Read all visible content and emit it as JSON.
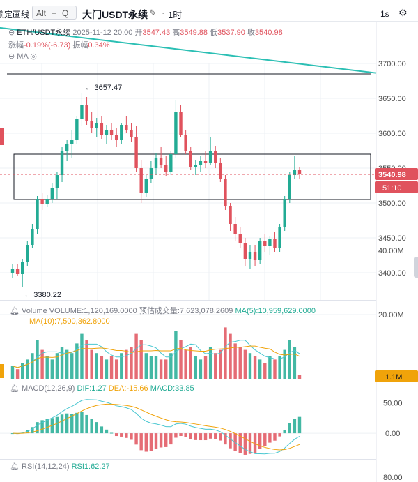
{
  "toolbar": {
    "drawing_label": "锁定画线",
    "shortcut_alt": "Alt",
    "shortcut_plus": "+",
    "shortcut_q": "Q",
    "symbol_title": "大门USDT永续",
    "timeframe": "1时",
    "interval_right": "1s"
  },
  "info": {
    "pair": "ETH/USDT永续",
    "datetime": "2025-11-12 20:00",
    "open_label": "开",
    "open": "3547.43",
    "high_label": "高",
    "high": "3549.88",
    "low_label": "低",
    "low": "3537.90",
    "close_label": "收",
    "close": "3540.98",
    "change_label": "涨幅",
    "change": "-0.19%(-6.73)",
    "amplitude_label": "振幅",
    "amplitude": "0.34%",
    "ma_label": "MA"
  },
  "volume_panel": {
    "title": "Volume",
    "volume_text": "VOLUME:1,120,169.0000",
    "est_text": "预估成交量:7,623,078.2609",
    "ma5_text": "MA(5):10,959,629.0000",
    "ma10_text": "MA(10):7,500,362.8000",
    "axis": [
      "40.00M",
      "20.00M"
    ],
    "badge": "1.1M"
  },
  "macd_panel": {
    "title": "MACD(12,26,9)",
    "dif_text": "DIF:1.27",
    "dea_text": "DEA:-15.66",
    "macd_text": "MACD:33.85",
    "axis": [
      "50.00",
      "0.00"
    ]
  },
  "rsi_panel": {
    "title": "RSI(14,12,24)",
    "rsi_text": "RSI1:62.27",
    "axis": [
      "80.00"
    ]
  },
  "price_axis": [
    "3700.00",
    "3650.00",
    "3600.00",
    "3550.00",
    "3500.00",
    "3450.00",
    "3400.00"
  ],
  "price_badge": "3540.98",
  "countdown_badge": "51:10",
  "annotations": {
    "high_label": "3657.47",
    "low_label": "3380.22"
  },
  "colors": {
    "up": "#22ab94",
    "down": "#e0525d",
    "trend": "#2bbfb4",
    "ma5": "#4ac7d1",
    "ma10": "#f0a30a",
    "grid": "#eef0f4"
  },
  "chart_data": {
    "type": "candlestick",
    "interval": "1h",
    "last_close": 3540.98,
    "hlines": [
      3685,
      3570,
      3505
    ],
    "trendline": [
      [
        0,
        3755
      ],
      [
        92,
        3669
      ]
    ],
    "price_range": [
      3370,
      3710
    ],
    "candles": [
      [
        3400,
        3412,
        3392,
        3405
      ],
      [
        3405,
        3412,
        3395,
        3398
      ],
      [
        3398,
        3420,
        3380,
        3415
      ],
      [
        3415,
        3445,
        3410,
        3440
      ],
      [
        3440,
        3470,
        3435,
        3462
      ],
      [
        3462,
        3510,
        3455,
        3505
      ],
      [
        3505,
        3515,
        3490,
        3498
      ],
      [
        3498,
        3512,
        3494,
        3505
      ],
      [
        3505,
        3528,
        3500,
        3522
      ],
      [
        3522,
        3545,
        3505,
        3540
      ],
      [
        3540,
        3580,
        3530,
        3575
      ],
      [
        3575,
        3590,
        3560,
        3585
      ],
      [
        3585,
        3605,
        3565,
        3590
      ],
      [
        3590,
        3625,
        3585,
        3620
      ],
      [
        3620,
        3657,
        3610,
        3640
      ],
      [
        3640,
        3652,
        3612,
        3618
      ],
      [
        3618,
        3630,
        3600,
        3608
      ],
      [
        3608,
        3622,
        3595,
        3615
      ],
      [
        3615,
        3625,
        3592,
        3598
      ],
      [
        3598,
        3612,
        3585,
        3605
      ],
      [
        3605,
        3615,
        3590,
        3597
      ],
      [
        3597,
        3608,
        3580,
        3590
      ],
      [
        3590,
        3615,
        3585,
        3612
      ],
      [
        3612,
        3625,
        3600,
        3605
      ],
      [
        3605,
        3615,
        3588,
        3595
      ],
      [
        3595,
        3610,
        3545,
        3550
      ],
      [
        3550,
        3562,
        3500,
        3515
      ],
      [
        3515,
        3540,
        3508,
        3535
      ],
      [
        3535,
        3560,
        3528,
        3550
      ],
      [
        3550,
        3572,
        3540,
        3565
      ],
      [
        3565,
        3580,
        3550,
        3555
      ],
      [
        3555,
        3568,
        3538,
        3545
      ],
      [
        3545,
        3575,
        3540,
        3570
      ],
      [
        3570,
        3648,
        3565,
        3630
      ],
      [
        3630,
        3640,
        3595,
        3598
      ],
      [
        3598,
        3605,
        3570,
        3575
      ],
      [
        3575,
        3580,
        3548,
        3552
      ],
      [
        3552,
        3562,
        3540,
        3555
      ],
      [
        3555,
        3568,
        3545,
        3560
      ],
      [
        3560,
        3575,
        3550,
        3558
      ],
      [
        3558,
        3595,
        3555,
        3575
      ],
      [
        3575,
        3582,
        3550,
        3558
      ],
      [
        3558,
        3565,
        3530,
        3535
      ],
      [
        3535,
        3540,
        3490,
        3495
      ],
      [
        3495,
        3500,
        3460,
        3470
      ],
      [
        3470,
        3480,
        3445,
        3455
      ],
      [
        3455,
        3465,
        3435,
        3442
      ],
      [
        3442,
        3450,
        3410,
        3420
      ],
      [
        3420,
        3440,
        3405,
        3430
      ],
      [
        3430,
        3440,
        3410,
        3418
      ],
      [
        3418,
        3450,
        3412,
        3445
      ],
      [
        3445,
        3455,
        3430,
        3438
      ],
      [
        3438,
        3452,
        3425,
        3448
      ],
      [
        3448,
        3458,
        3430,
        3435
      ],
      [
        3435,
        3470,
        3430,
        3465
      ],
      [
        3465,
        3510,
        3460,
        3505
      ],
      [
        3505,
        3545,
        3500,
        3540
      ],
      [
        3540,
        3568,
        3535,
        3548
      ],
      [
        3548,
        3552,
        3535,
        3541
      ]
    ],
    "volume": [
      4,
      3,
      5,
      6,
      8,
      12,
      9,
      7,
      6,
      8,
      10,
      9,
      8,
      11,
      14,
      12,
      9,
      8,
      7,
      6,
      7,
      6,
      8,
      9,
      10,
      14,
      12,
      8,
      7,
      7,
      6,
      6,
      8,
      15,
      12,
      9,
      10,
      7,
      6,
      7,
      10,
      8,
      9,
      16,
      14,
      11,
      10,
      9,
      8,
      7,
      6,
      5,
      7,
      6,
      7,
      9,
      12,
      10,
      1.1
    ],
    "macd": {
      "dif": 1.27,
      "dea": -15.66,
      "macd": 33.85,
      "axis_range": [
        -40,
        70
      ]
    },
    "rsi": {
      "rsi1": 62.27
    }
  }
}
